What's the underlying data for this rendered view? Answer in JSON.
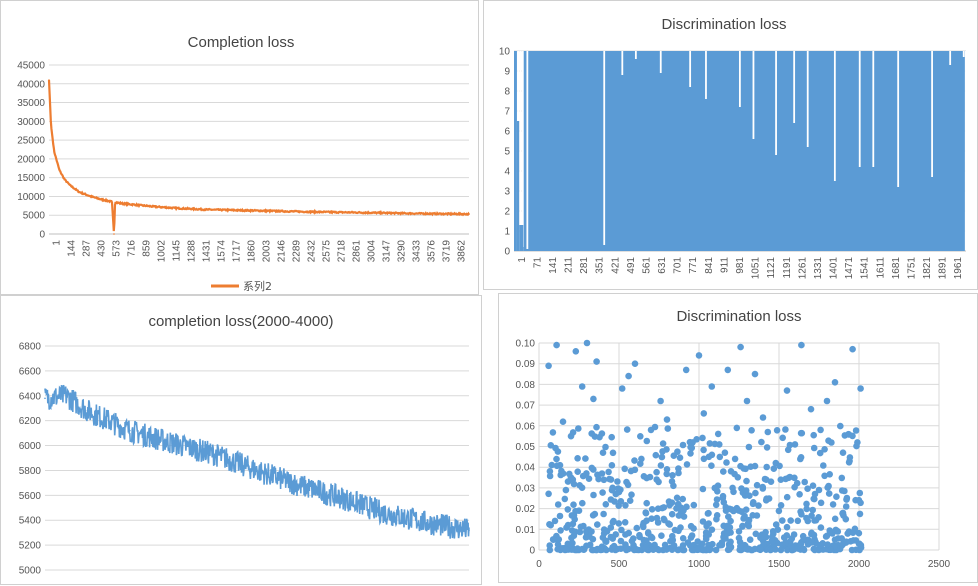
{
  "colors": {
    "orange": "#ED7D31",
    "blue": "#5B9BD5",
    "grid": "#D9D9D9",
    "axis": "#BFBFBF"
  },
  "chart_data": [
    {
      "type": "line",
      "title": "Completion loss",
      "x_tick_labels": [
        "1",
        "144",
        "287",
        "430",
        "573",
        "716",
        "859",
        "1002",
        "1145",
        "1288",
        "1431",
        "1574",
        "1717",
        "1860",
        "2003",
        "2146",
        "2289",
        "2432",
        "2575",
        "2718",
        "2861",
        "3004",
        "3147",
        "3290",
        "3433",
        "3576",
        "3719",
        "3862"
      ],
      "xlim": [
        1,
        4000
      ],
      "ylim": [
        0,
        45000
      ],
      "yticks": [
        0,
        5000,
        10000,
        15000,
        20000,
        25000,
        30000,
        35000,
        40000,
        45000
      ],
      "grid": true,
      "legend": "bottom",
      "series": [
        {
          "name": "系列2",
          "color": "#ED7D31",
          "x": [
            1,
            20,
            50,
            100,
            150,
            200,
            287,
            400,
            500,
            600,
            620,
            630,
            640,
            700,
            850,
            1000,
            1200,
            1500,
            2000,
            2500,
            3000,
            3500,
            4000
          ],
          "values": [
            41000,
            29000,
            22000,
            17000,
            14500,
            13000,
            11200,
            10000,
            9200,
            8600,
            0,
            8400,
            8400,
            8100,
            7700,
            7300,
            6900,
            6500,
            6200,
            5900,
            5700,
            5450,
            5300
          ]
        }
      ]
    },
    {
      "type": "bar",
      "title": "Discrimination loss",
      "x_tick_labels": [
        "1",
        "71",
        "141",
        "211",
        "281",
        "351",
        "421",
        "491",
        "561",
        "631",
        "701",
        "771",
        "841",
        "911",
        "981",
        "1051",
        "1121",
        "1191",
        "1261",
        "1331",
        "1401",
        "1471",
        "1541",
        "1611",
        "1681",
        "1751",
        "1821",
        "1891",
        "1961"
      ],
      "xlim": [
        1,
        2000
      ],
      "ylim": [
        0,
        10
      ],
      "yticks": [
        0,
        1,
        2,
        3,
        4,
        5,
        6,
        7,
        8,
        9,
        10
      ],
      "grid": true,
      "series": [
        {
          "name": "",
          "color": "#5B9BD5",
          "x": [
            1,
            20,
            30,
            40,
            60,
            400,
            480,
            540,
            650,
            780,
            850,
            1000,
            1060,
            1160,
            1240,
            1300,
            1420,
            1530,
            1590,
            1700,
            1850,
            1930,
            1990,
            2000
          ],
          "values": [
            10,
            6.5,
            1.3,
            0.2,
            0.1,
            0.3,
            8.8,
            9.6,
            8.9,
            8.2,
            7.6,
            7.2,
            5.6,
            4.8,
            6.4,
            5.2,
            3.5,
            4.2,
            4.2,
            3.2,
            3.7,
            9.3,
            9.7,
            0.1
          ]
        }
      ]
    },
    {
      "type": "line",
      "title": "completion loss(2000-4000)",
      "xlim": [
        2000,
        4000
      ],
      "ylim": [
        5000,
        6800
      ],
      "yticks": [
        5000,
        5200,
        5400,
        5600,
        5800,
        6000,
        6200,
        6400,
        6600,
        6800
      ],
      "grid": true,
      "series": [
        {
          "name": "",
          "color": "#5B9BD5",
          "x": [
            2000,
            2100,
            2200,
            2400,
            2600,
            2800,
            3000,
            3200,
            3400,
            3600,
            3800,
            4000
          ],
          "values": [
            6380,
            6400,
            6280,
            6120,
            6020,
            5930,
            5800,
            5680,
            5580,
            5460,
            5380,
            5320
          ]
        }
      ]
    },
    {
      "type": "scatter",
      "title": "Discrimination loss",
      "xlim": [
        0,
        2500
      ],
      "ylim": [
        0,
        0.1
      ],
      "xticks": [
        0,
        500,
        1000,
        1500,
        2000,
        2500
      ],
      "yticks": [
        0,
        0.01,
        0.02,
        0.03,
        0.04,
        0.05,
        0.06,
        0.07,
        0.08,
        0.09,
        0.1
      ],
      "grid": true,
      "series": [
        {
          "name": "",
          "color": "#5B9BD5",
          "x": [
            60,
            80,
            110,
            150,
            200,
            230,
            270,
            300,
            340,
            360,
            400,
            450,
            520,
            560,
            600,
            640,
            700,
            760,
            800,
            840,
            920,
            960,
            1000,
            1030,
            1080,
            1130,
            1180,
            1200,
            1260,
            1300,
            1350,
            1400,
            1430,
            1480,
            1550,
            1600,
            1640,
            1700,
            1760,
            1800,
            1850,
            1900,
            1960,
            1990,
            2010,
            120,
            250,
            480,
            780,
            1100,
            1420,
            1680,
            1920,
            300,
            650,
            950,
            1250,
            1550,
            1850,
            180,
            420,
            720,
            1020,
            1320,
            1620,
            1920,
            90,
            390,
            690,
            990,
            1290,
            1590,
            1890,
            200,
            500,
            800,
            1150,
            1450,
            1750,
            2000
          ],
          "values": [
            0.089,
            0.041,
            0.099,
            0.062,
            0.055,
            0.096,
            0.079,
            0.1,
            0.073,
            0.091,
            0.047,
            0.034,
            0.078,
            0.084,
            0.09,
            0.044,
            0.058,
            0.072,
            0.063,
            0.031,
            0.087,
            0.052,
            0.094,
            0.066,
            0.079,
            0.045,
            0.087,
            0.038,
            0.098,
            0.072,
            0.085,
            0.064,
            0.057,
            0.042,
            0.077,
            0.051,
            0.099,
            0.068,
            0.058,
            0.072,
            0.081,
            0.047,
            0.097,
            0.052,
            0.078,
            0.022,
            0.019,
            0.027,
            0.015,
            0.03,
            0.024,
            0.014,
            0.021,
            0.008,
            0.012,
            0.006,
            0.009,
            0.011,
            0.005,
            0.003,
            0.004,
            0.002,
            0.003,
            0.005,
            0.002,
            0.004,
            0.005,
            0.001,
            0.002,
            0.001,
            0.002,
            0.001,
            0.002,
            0.035,
            0.028,
            0.039,
            0.026,
            0.033,
            0.029,
            0.003
          ]
        }
      ]
    }
  ]
}
